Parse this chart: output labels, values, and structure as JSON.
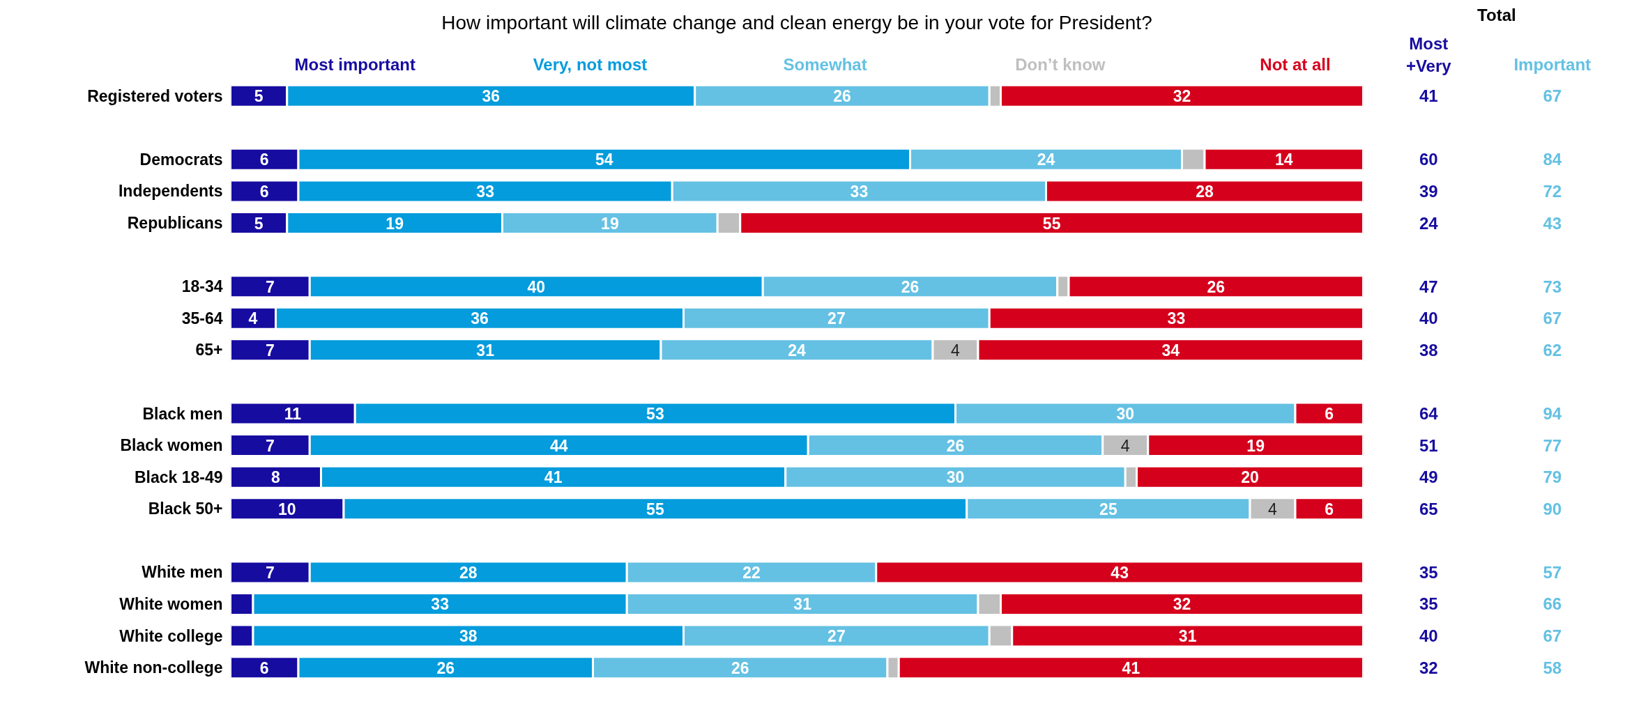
{
  "chart_data": {
    "type": "bar",
    "orientation": "horizontal",
    "stacked": true,
    "title": "How important will climate change and clean energy be in your vote for President?",
    "categories": [
      "Registered voters",
      null,
      "Democrats",
      "Independents",
      "Republicans",
      null,
      "18-34",
      "35-64",
      "65+",
      null,
      "Black men",
      "Black women",
      "Black 18-49",
      "Black 50+",
      null,
      "White men",
      "White women",
      "White college",
      "White non-college"
    ],
    "xlim": [
      0,
      100
    ],
    "legend": "top",
    "series": [
      {
        "name": "Most important",
        "color": "#170ca0",
        "values": [
          5,
          null,
          6,
          6,
          5,
          null,
          7,
          4,
          7,
          null,
          11,
          7,
          8,
          10,
          null,
          7,
          2,
          2,
          6
        ],
        "value_labels": [
          "5",
          null,
          "6",
          "6",
          "5",
          null,
          "7",
          "4",
          "7",
          null,
          "11",
          "7",
          "8",
          "10",
          null,
          "7",
          null,
          null,
          "6"
        ]
      },
      {
        "name": "Very, not most",
        "color": "#049cdc",
        "values": [
          36,
          null,
          54,
          33,
          19,
          null,
          40,
          36,
          31,
          null,
          53,
          44,
          41,
          55,
          null,
          28,
          33,
          38,
          26
        ],
        "value_labels": [
          "36",
          null,
          "54",
          "33",
          "19",
          null,
          "40",
          "36",
          "31",
          null,
          "53",
          "44",
          "41",
          "55",
          null,
          "28",
          "33",
          "38",
          "26"
        ]
      },
      {
        "name": "Somewhat",
        "color": "#64c1e3",
        "values": [
          26,
          null,
          24,
          33,
          19,
          null,
          26,
          27,
          24,
          null,
          30,
          26,
          30,
          25,
          null,
          22,
          31,
          27,
          26
        ],
        "value_labels": [
          "26",
          null,
          "24",
          "33",
          "19",
          null,
          "26",
          "27",
          "24",
          null,
          "30",
          "26",
          "30",
          "25",
          null,
          "22",
          "31",
          "27",
          "26"
        ]
      },
      {
        "name": "Don’t know",
        "color": "#bfbfbf",
        "values": [
          1,
          null,
          2,
          0,
          2,
          null,
          1,
          0,
          4,
          null,
          0,
          4,
          1,
          4,
          null,
          0,
          2,
          2,
          1
        ],
        "value_labels": [
          null,
          null,
          null,
          null,
          null,
          null,
          null,
          null,
          "4",
          null,
          null,
          "4",
          null,
          "4",
          null,
          null,
          null,
          null,
          null
        ]
      },
      {
        "name": "Not at all",
        "color": "#d5001c",
        "values": [
          32,
          null,
          14,
          28,
          55,
          null,
          26,
          33,
          34,
          null,
          6,
          19,
          20,
          6,
          null,
          43,
          32,
          31,
          41
        ],
        "value_labels": [
          "32",
          null,
          "14",
          "28",
          "55",
          null,
          "26",
          "33",
          "34",
          null,
          "6",
          "19",
          "20",
          "6",
          null,
          "43",
          "32",
          "31",
          "41"
        ]
      }
    ],
    "totals": [
      [
        "41",
        null,
        "60",
        "39",
        "24",
        null,
        "47",
        "40",
        "38",
        null,
        "64",
        "51",
        "49",
        "65",
        null,
        "35",
        "35",
        "40",
        "32"
      ],
      [
        "67",
        null,
        "84",
        "72",
        "43",
        null,
        "73",
        "67",
        "62",
        null,
        "94",
        "77",
        "79",
        "90",
        null,
        "57",
        "66",
        "67",
        "58"
      ]
    ],
    "annotations": [
      "Total",
      "Most\n+Very",
      "Important"
    ]
  }
}
